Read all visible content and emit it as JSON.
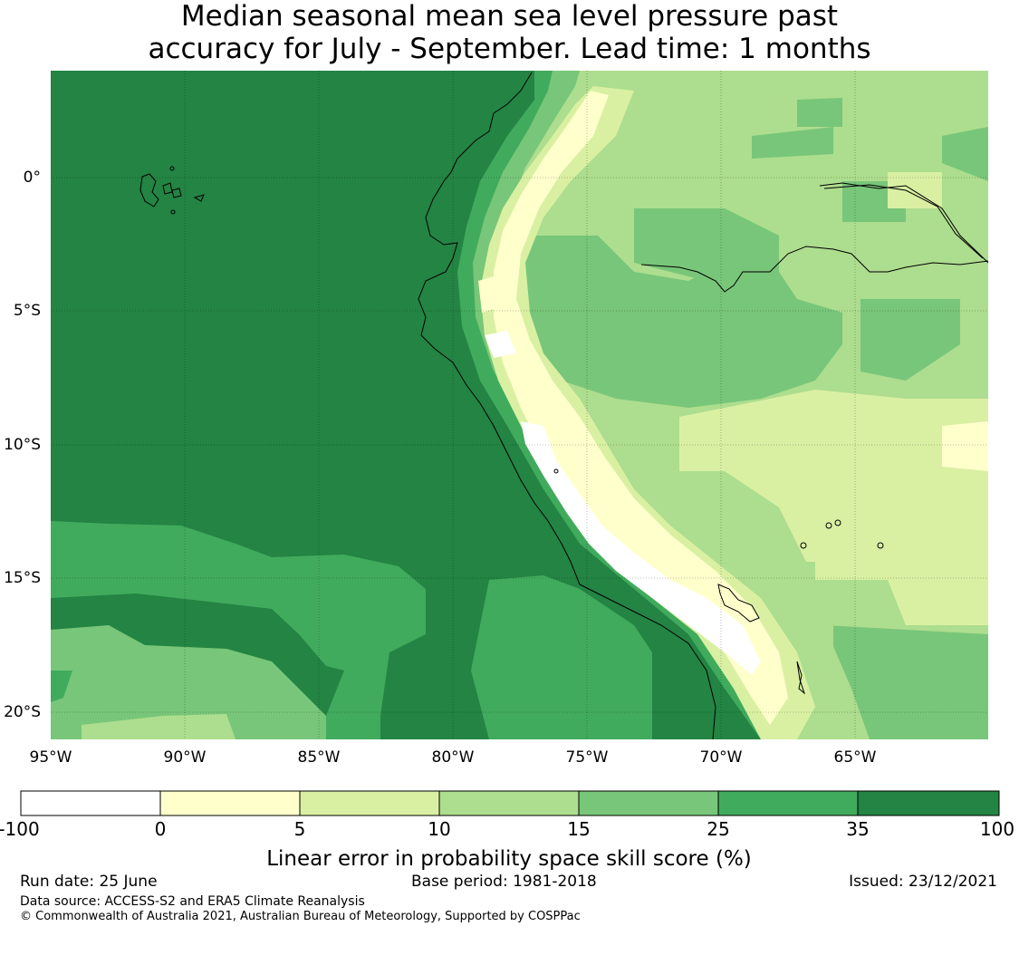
{
  "title": {
    "line1": "Median seasonal mean sea level pressure past",
    "line2": "accuracy for July - September. Lead time: 1 months"
  },
  "map": {
    "lat_labels": [
      "0°",
      "5°S",
      "10°S",
      "15°S",
      "20°S"
    ],
    "lon_labels": [
      "95°W",
      "90°W",
      "85°W",
      "80°W",
      "75°W",
      "70°W",
      "65°W"
    ]
  },
  "colorbar": {
    "ticks": [
      "-100",
      "0",
      "5",
      "10",
      "15",
      "25",
      "35",
      "100"
    ],
    "colors": [
      "#ffffff",
      "#ffffcc",
      "#d9f0a3",
      "#addd8e",
      "#78c679",
      "#41ab5d",
      "#238443"
    ],
    "label": "Linear error in probability space skill score (%)"
  },
  "footer": {
    "run_date": "Run date: 25 June",
    "base_period": "Base period: 1981-2018",
    "issued": "Issued: 23/12/2021",
    "data_source": "Data source: ACCESS-S2 and ERA5 Climate Reanalysis",
    "copyright": "© Commonwealth of Australia 2021, Australian Bureau of Meteorology, Supported by COSPPac"
  }
}
